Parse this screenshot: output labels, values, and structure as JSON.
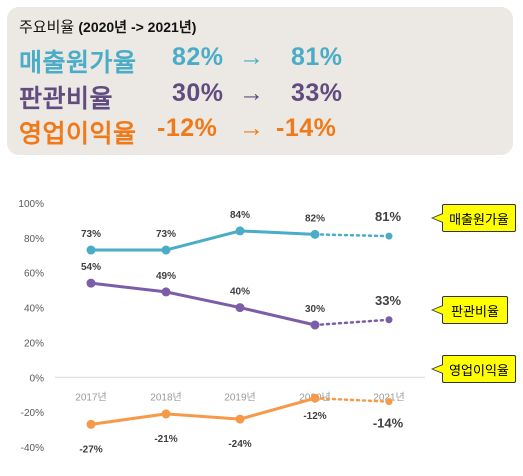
{
  "summary": {
    "title_main": "주요비율",
    "title_period": "(2020년 -> 2021년)",
    "rows": [
      {
        "label": "매출원가율",
        "from": "82%",
        "arrow": "→",
        "to": "81%"
      },
      {
        "label": "판관비율",
        "from": "30%",
        "arrow": "→",
        "to": "33%"
      },
      {
        "label": "영업이익율",
        "from": "-12%",
        "arrow": "→",
        "to": "-14%"
      }
    ]
  },
  "colors": {
    "cogs": "#4aacc6",
    "sga": "#7b5ea7",
    "op": "#f59a48",
    "grid": "#d9d9d9",
    "axis_text": "#595959"
  },
  "callouts": [
    "매출원가율",
    "판관비율",
    "영업이익율"
  ],
  "chart_data": {
    "type": "line",
    "categories": [
      "2017년",
      "2018년",
      "2019년",
      "2020년",
      "2021년"
    ],
    "ylim": [
      -40,
      100
    ],
    "yticks": [
      -40,
      -20,
      0,
      20,
      40,
      60,
      80,
      100
    ],
    "ytick_labels": [
      "-40%",
      "-20%",
      "0%",
      "20%",
      "40%",
      "60%",
      "80%",
      "100%"
    ],
    "grid": false,
    "forecast_from_index": 3,
    "series": [
      {
        "name": "매출원가율",
        "values": [
          73,
          73,
          84,
          82,
          81
        ],
        "labels": [
          "73%",
          "73%",
          "84%",
          "82%",
          "81%"
        ],
        "color": "#4aacc6"
      },
      {
        "name": "판관비율",
        "values": [
          54,
          49,
          40,
          30,
          33
        ],
        "labels": [
          "54%",
          "49%",
          "40%",
          "30%",
          "33%"
        ],
        "color": "#7b5ea7"
      },
      {
        "name": "영업이익율",
        "values": [
          -27,
          -21,
          -24,
          -12,
          -14
        ],
        "labels": [
          "-27%",
          "-21%",
          "-24%",
          "-12%",
          "-14%"
        ],
        "color": "#f59a48"
      }
    ]
  }
}
